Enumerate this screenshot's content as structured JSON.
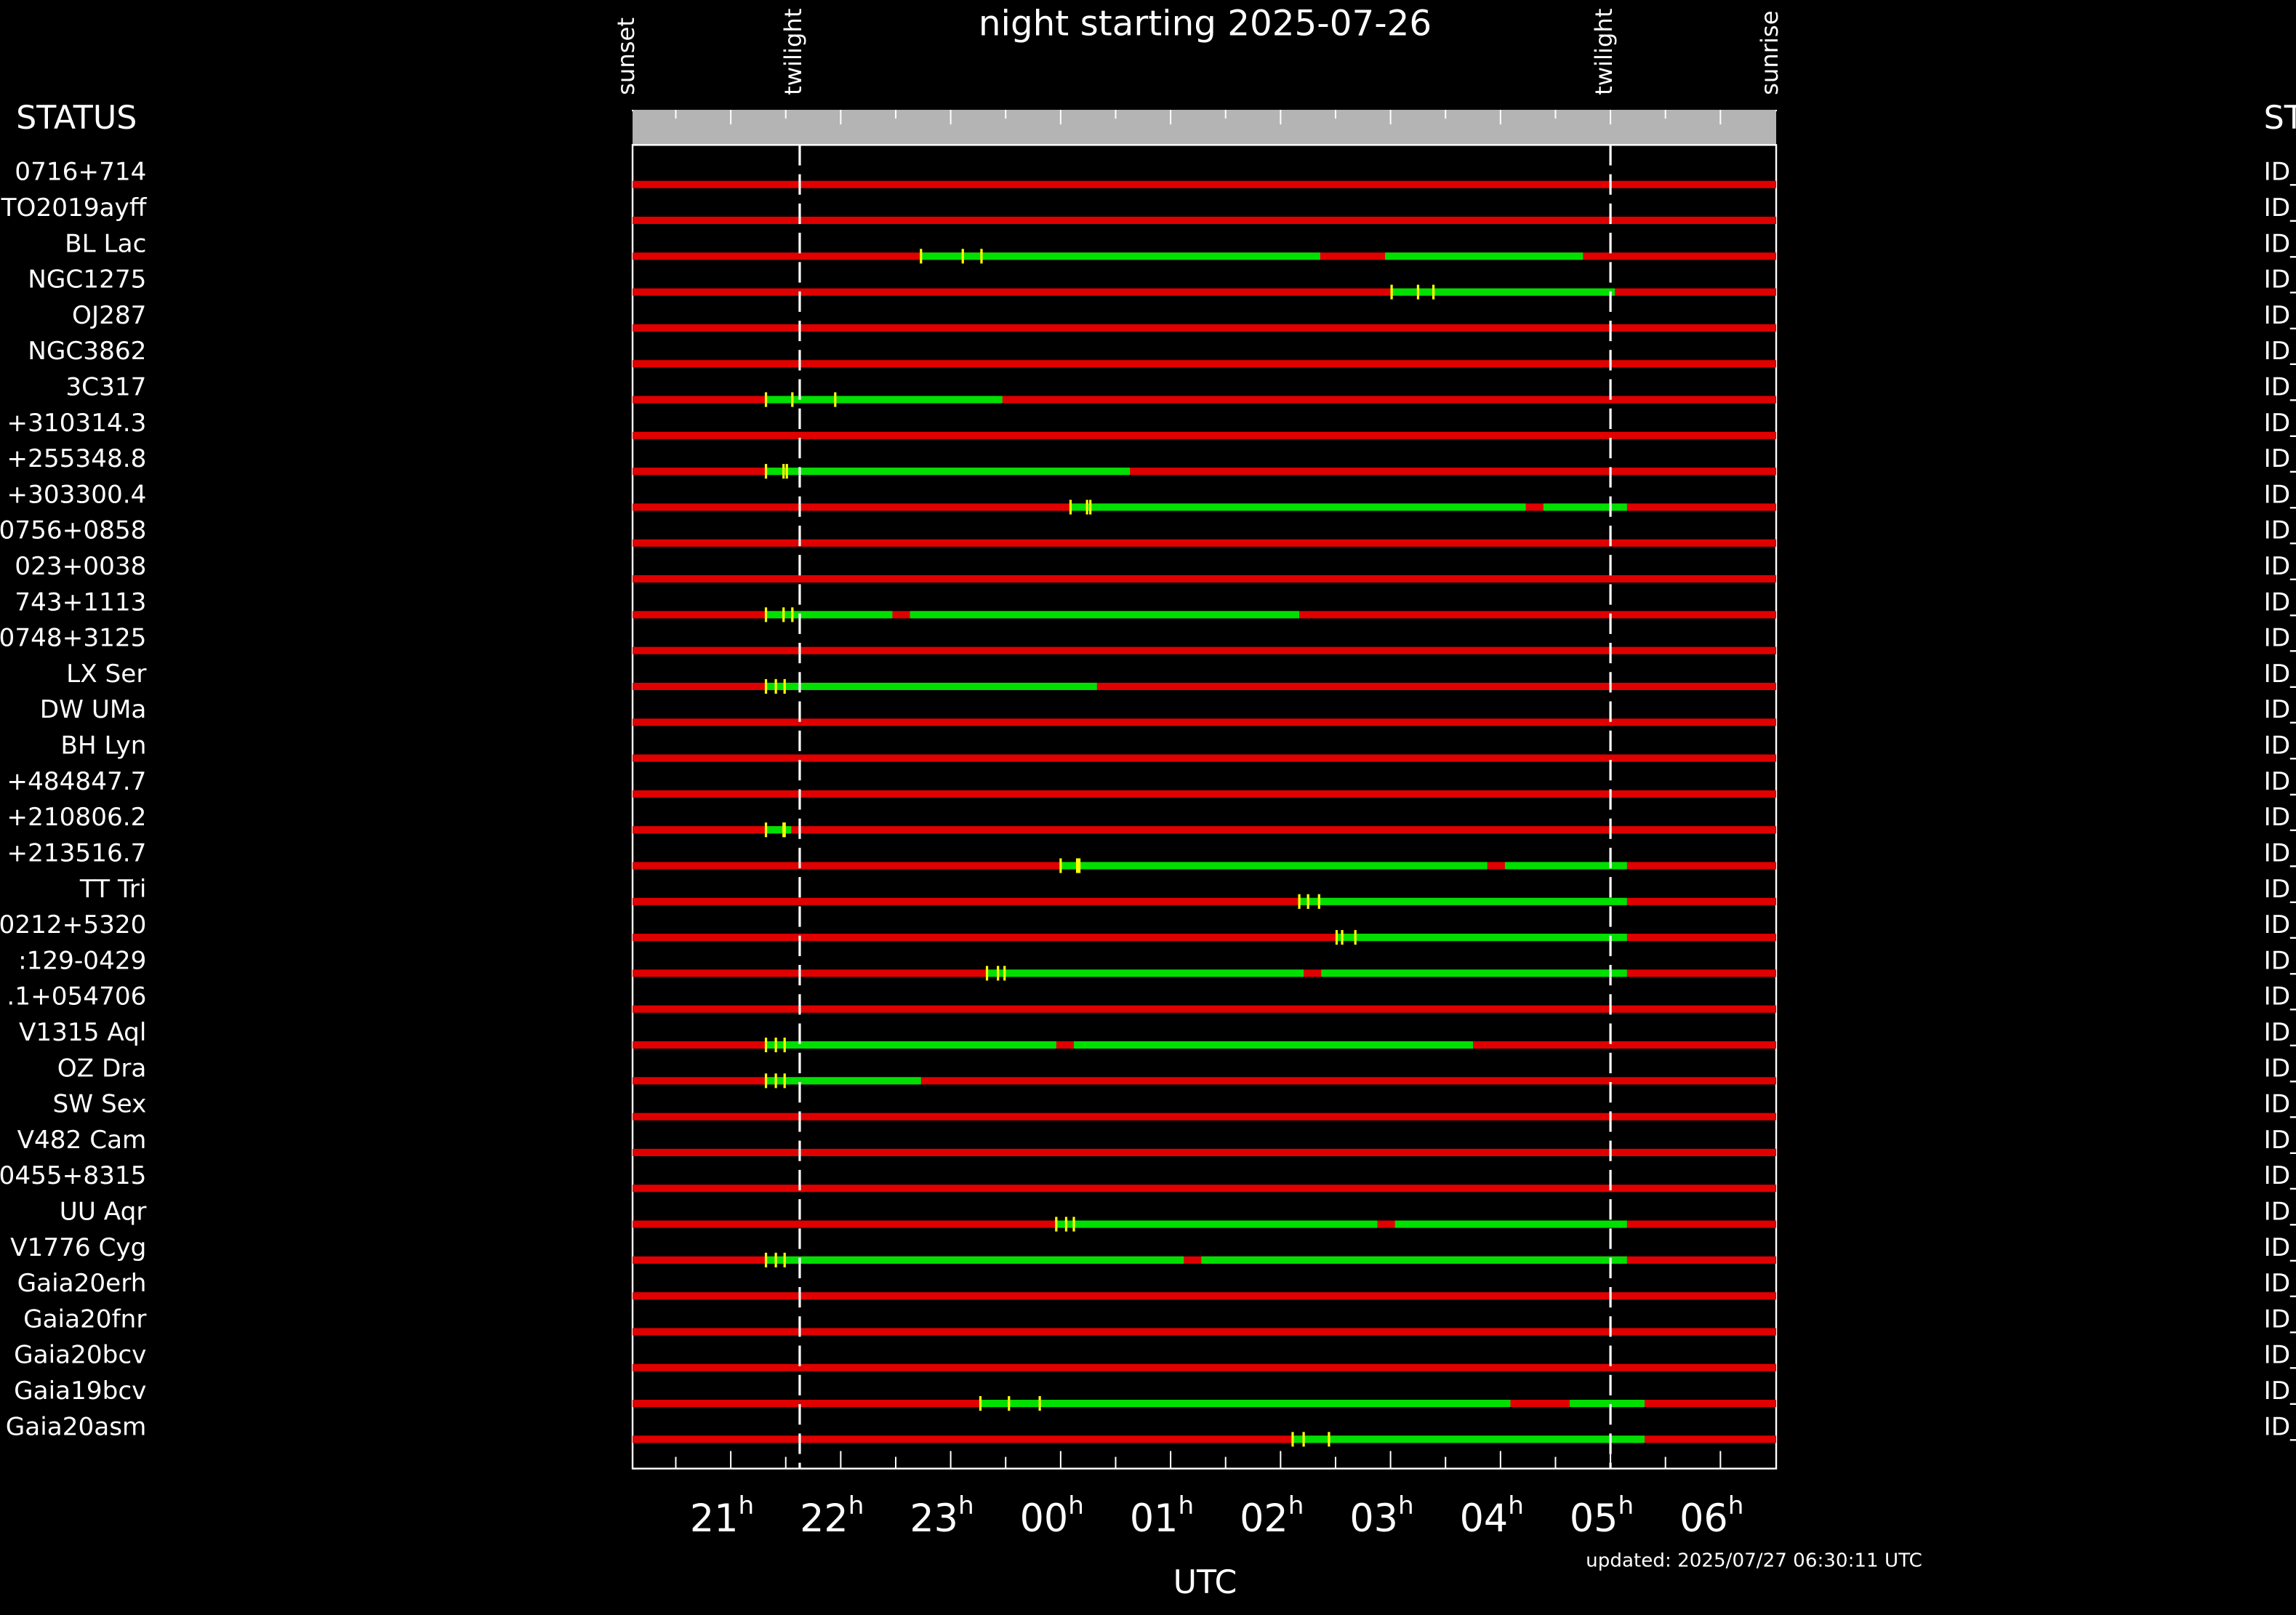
{
  "chart_data": {
    "type": "timeline",
    "title": "night starting 2025-07-26",
    "xlabel": "UTC",
    "status_header": "STATUS",
    "updated": "updated: 2025/07/27 06:30:11 UTC",
    "xlim": [
      20.107,
      30.507
    ],
    "xticks": [
      {
        "value": 21,
        "label": "21"
      },
      {
        "value": 22,
        "label": "22"
      },
      {
        "value": 23,
        "label": "23"
      },
      {
        "value": 24,
        "label": "00"
      },
      {
        "value": 25,
        "label": "01"
      },
      {
        "value": 26,
        "label": "02"
      },
      {
        "value": 27,
        "label": "03"
      },
      {
        "value": 28,
        "label": "04"
      },
      {
        "value": 29,
        "label": "05"
      },
      {
        "value": 30,
        "label": "06"
      }
    ],
    "xtick_suffix": "h",
    "minor_xticks": [
      20.5,
      21.5,
      22.5,
      23.5,
      24.5,
      25.5,
      26.5,
      27.5,
      28.5,
      29.5
    ],
    "markers": [
      {
        "label": "sunset",
        "time": 20.107,
        "dashed": false
      },
      {
        "label": "twilight",
        "time": 21.627,
        "dashed": true
      },
      {
        "label": "twilight",
        "time": 29.0,
        "dashed": true
      },
      {
        "label": "sunrise",
        "time": 30.507,
        "dashed": false
      }
    ],
    "colors": {
      "unobservable": "#e00000",
      "observable": "#00e000",
      "mark": "#ffff00",
      "band": "#b4b4b4"
    },
    "rows": [
      {
        "name": "0716+714",
        "id": "ID_",
        "segments": [],
        "marks": []
      },
      {
        "name": "TO2019ayff",
        "id": "ID_",
        "segments": [],
        "marks": []
      },
      {
        "name": "BL Lac",
        "id": "ID_",
        "segments": [
          [
            22.73,
            26.36
          ],
          [
            26.95,
            28.75
          ]
        ],
        "marks": [
          22.73,
          23.11,
          23.28
        ]
      },
      {
        "name": "NGC1275",
        "id": "ID_",
        "segments": [
          [
            27.01,
            29.04
          ]
        ],
        "marks": [
          27.01,
          27.25,
          27.39
        ]
      },
      {
        "name": "OJ287",
        "id": "ID_",
        "segments": [],
        "marks": []
      },
      {
        "name": "NGC3862",
        "id": "ID_",
        "segments": [],
        "marks": []
      },
      {
        "name": "3C317",
        "id": "ID_",
        "segments": [
          [
            21.32,
            23.47
          ]
        ],
        "marks": [
          21.32,
          21.56,
          21.95
        ]
      },
      {
        "name": "+310314.3",
        "id": "ID_",
        "segments": [],
        "marks": []
      },
      {
        "name": "+255348.8",
        "id": "ID_",
        "segments": [
          [
            21.32,
            24.63
          ]
        ],
        "marks": [
          21.32,
          21.48,
          21.51
        ]
      },
      {
        "name": "+303300.4",
        "id": "ID_",
        "segments": [
          [
            24.09,
            28.23
          ],
          [
            28.39,
            29.15
          ]
        ],
        "marks": [
          24.09,
          24.24,
          24.27
        ]
      },
      {
        "name": "0756+0858",
        "id": "ID_",
        "segments": [],
        "marks": []
      },
      {
        "name": "023+0038",
        "id": "ID_",
        "segments": [],
        "marks": []
      },
      {
        "name": "743+1113",
        "id": "ID_",
        "segments": [
          [
            21.32,
            22.47
          ],
          [
            22.63,
            26.17
          ]
        ],
        "marks": [
          21.32,
          21.48,
          21.56
        ]
      },
      {
        "name": "0748+3125",
        "id": "ID_",
        "segments": [],
        "marks": []
      },
      {
        "name": "LX Ser",
        "id": "ID_",
        "segments": [
          [
            21.32,
            24.33
          ]
        ],
        "marks": [
          21.32,
          21.41,
          21.49
        ]
      },
      {
        "name": "DW UMa",
        "id": "ID_",
        "segments": [],
        "marks": []
      },
      {
        "name": "BH Lyn",
        "id": "ID_",
        "segments": [],
        "marks": []
      },
      {
        "name": "+484847.7",
        "id": "ID_",
        "segments": [],
        "marks": []
      },
      {
        "name": "+210806.2",
        "id": "ID_",
        "segments": [
          [
            21.32,
            21.55
          ]
        ],
        "marks": [
          21.32,
          21.48,
          21.49
        ]
      },
      {
        "name": "+213516.7",
        "id": "ID_",
        "segments": [
          [
            24.0,
            27.88
          ],
          [
            28.04,
            29.15
          ]
        ],
        "marks": [
          24.0,
          24.15,
          24.17
        ]
      },
      {
        "name": "TT Tri",
        "id": "ID_",
        "segments": [
          [
            26.17,
            29.15
          ]
        ],
        "marks": [
          26.17,
          26.25,
          26.35
        ]
      },
      {
        "name": "0212+5320",
        "id": "ID_",
        "segments": [
          [
            26.51,
            29.15
          ]
        ],
        "marks": [
          26.51,
          26.56,
          26.68
        ]
      },
      {
        "name": ":129-0429",
        "id": "ID_",
        "segments": [
          [
            23.33,
            26.21
          ],
          [
            26.37,
            29.15
          ]
        ],
        "marks": [
          23.33,
          23.43,
          23.49
        ]
      },
      {
        "name": ".1+054706",
        "id": "ID_",
        "segments": [],
        "marks": []
      },
      {
        "name": "V1315 Aql",
        "id": "ID_",
        "segments": [
          [
            21.32,
            23.96
          ],
          [
            24.12,
            27.75
          ]
        ],
        "marks": [
          21.32,
          21.41,
          21.49
        ]
      },
      {
        "name": "OZ Dra",
        "id": "ID_",
        "segments": [
          [
            21.32,
            22.73
          ]
        ],
        "marks": [
          21.32,
          21.41,
          21.49
        ]
      },
      {
        "name": "SW Sex",
        "id": "ID_",
        "segments": [],
        "marks": []
      },
      {
        "name": "V482 Cam",
        "id": "ID_",
        "segments": [],
        "marks": []
      },
      {
        "name": "0455+8315",
        "id": "ID_",
        "segments": [],
        "marks": []
      },
      {
        "name": "UU Aqr",
        "id": "ID_",
        "segments": [
          [
            23.96,
            26.88
          ],
          [
            27.04,
            29.15
          ]
        ],
        "marks": [
          23.96,
          24.05,
          24.12
        ]
      },
      {
        "name": "V1776 Cyg",
        "id": "ID_",
        "segments": [
          [
            21.32,
            25.12
          ],
          [
            25.28,
            29.15
          ]
        ],
        "marks": [
          21.32,
          21.41,
          21.49
        ]
      },
      {
        "name": "Gaia20erh",
        "id": "ID_",
        "segments": [],
        "marks": []
      },
      {
        "name": "Gaia20fnr",
        "id": "ID_",
        "segments": [],
        "marks": []
      },
      {
        "name": "Gaia20bcv",
        "id": "ID_",
        "segments": [],
        "marks": []
      },
      {
        "name": "Gaia19bcv",
        "id": "ID_",
        "segments": [
          [
            23.27,
            28.09
          ],
          [
            28.63,
            29.31
          ]
        ],
        "marks": [
          23.27,
          23.53,
          23.81
        ]
      },
      {
        "name": "Gaia20asm",
        "id": "ID_",
        "segments": [
          [
            26.11,
            29.31
          ]
        ],
        "marks": [
          26.11,
          26.21,
          26.44
        ]
      }
    ]
  }
}
